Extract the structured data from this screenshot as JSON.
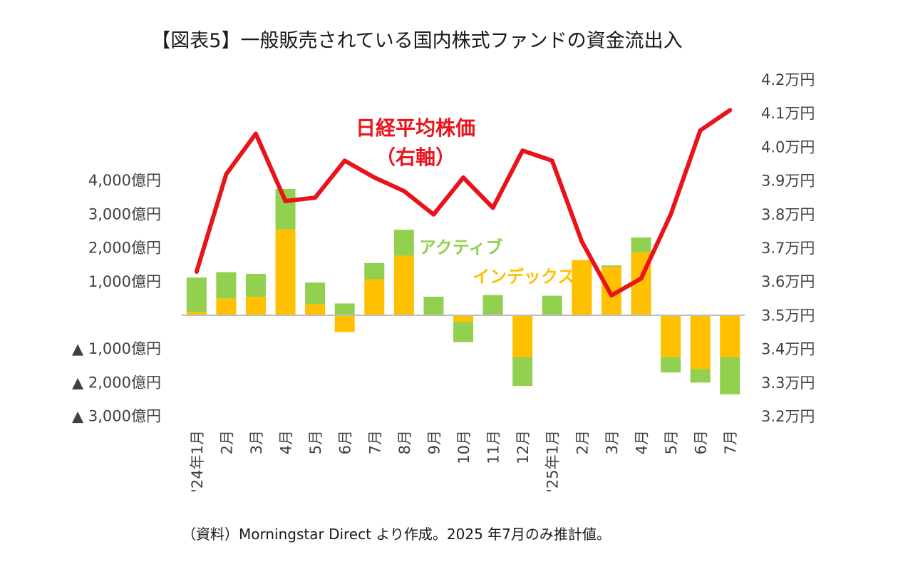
{
  "chart_data": {
    "type": "bar",
    "title": "【図表5】一般販売されている国内株式ファンドの資金流出入",
    "source": "（資料）Morningstar Direct より作成。2025 年7月のみ推計値。",
    "categories": [
      "'24年1月",
      "2月",
      "3月",
      "4月",
      "5月",
      "6月",
      "7月",
      "8月",
      "9月",
      "10月",
      "11月",
      "12月",
      "'25年1月",
      "2月",
      "3月",
      "4月",
      "5月",
      "6月",
      "7月"
    ],
    "left_axis": {
      "unit": "億円",
      "ylim": [
        -3000,
        4000
      ],
      "ticks": [
        4000,
        3000,
        2000,
        1000,
        -1000,
        -2000,
        -3000
      ],
      "tick_labels": [
        "4,000億円",
        "3,000億円",
        "2,000億円",
        "1,000億円",
        "▲ 1,000億円",
        "▲ 2,000億円",
        "▲ 3,000億円"
      ]
    },
    "right_axis": {
      "unit": "万円",
      "ylim": [
        3.2,
        4.2
      ],
      "ticks": [
        4.2,
        4.1,
        4.0,
        3.9,
        3.8,
        3.7,
        3.6,
        3.5,
        3.4,
        3.3,
        3.2
      ],
      "tick_labels": [
        "4.2万円",
        "4.1万円",
        "4.0万円",
        "3.9万円",
        "3.8万円",
        "3.7万円",
        "3.6万円",
        "3.5万円",
        "3.4万円",
        "3.3万円",
        "3.2万円"
      ]
    },
    "series": [
      {
        "name": "インデックス",
        "kind": "stacked_bar",
        "axis": "left",
        "color": "#ffc000",
        "values": [
          100,
          500,
          550,
          2550,
          330,
          -500,
          1070,
          1770,
          0,
          -200,
          0,
          -1250,
          0,
          1640,
          1440,
          1870,
          -1250,
          -1600,
          -1250
        ]
      },
      {
        "name": "アクティブ",
        "kind": "stacked_bar",
        "axis": "left",
        "color": "#92d050",
        "values": [
          1020,
          780,
          680,
          1200,
          640,
          350,
          480,
          770,
          550,
          -600,
          600,
          -850,
          580,
          0,
          40,
          440,
          -450,
          -400,
          -1100
        ]
      },
      {
        "name": "日経平均株価",
        "name_line2": "（右軸）",
        "kind": "line",
        "axis": "right",
        "color": "#e8141a",
        "values": [
          3.63,
          3.92,
          4.04,
          3.84,
          3.85,
          3.96,
          3.91,
          3.87,
          3.8,
          3.91,
          3.82,
          3.99,
          3.96,
          3.72,
          3.56,
          3.61,
          3.8,
          4.05,
          4.11
        ]
      }
    ],
    "grid": false
  }
}
